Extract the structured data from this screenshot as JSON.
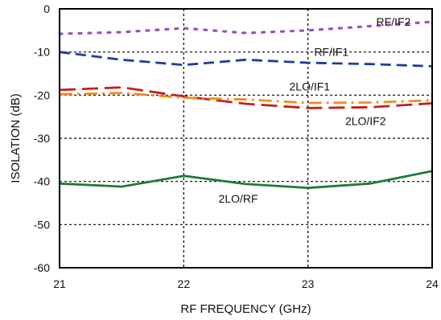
{
  "chart_data": {
    "type": "line",
    "title": "",
    "xlabel": "RF FREQUENCY (GHz)",
    "ylabel": "ISOLATION (dB)",
    "xlim": [
      21,
      24
    ],
    "ylim": [
      -60,
      0
    ],
    "xticks": [
      "21",
      "22",
      "23",
      "24"
    ],
    "yticks": [
      "0",
      "-10",
      "-20",
      "-30",
      "-40",
      "-50",
      "-60"
    ],
    "grid": true,
    "series": [
      {
        "name": "RF/IF2",
        "color": "#9a4fc0",
        "style": "dotted",
        "x": [
          21,
          21.5,
          22,
          22.5,
          23,
          23.5,
          24
        ],
        "y": [
          -5.8,
          -5.4,
          -4.5,
          -5.6,
          -5.0,
          -4.0,
          -3.0
        ]
      },
      {
        "name": "RF/IF1",
        "color": "#1f3c9a",
        "style": "dashed",
        "x": [
          21,
          21.5,
          22,
          22.5,
          23,
          23.5,
          24
        ],
        "y": [
          -10.0,
          -11.8,
          -13.0,
          -11.8,
          -12.5,
          -12.8,
          -13.3
        ]
      },
      {
        "name": "2LO/IF1",
        "color": "#c41f1f",
        "style": "longdash",
        "x": [
          21,
          21.5,
          22,
          22.5,
          23,
          23.5,
          24
        ],
        "y": [
          -18.8,
          -18.2,
          -20.3,
          -22.0,
          -23.0,
          -22.8,
          -21.9
        ]
      },
      {
        "name": "2LO/IF2",
        "color": "#f08c1e",
        "style": "dashdot",
        "x": [
          21,
          21.5,
          22,
          22.5,
          23,
          23.5,
          24
        ],
        "y": [
          -19.8,
          -19.5,
          -20.6,
          -21.0,
          -21.8,
          -21.7,
          -21.2
        ]
      },
      {
        "name": "2LO/RF",
        "color": "#1f7a3a",
        "style": "solid",
        "x": [
          21,
          21.5,
          22,
          22.5,
          23,
          23.5,
          24
        ],
        "y": [
          -40.5,
          -41.2,
          -38.7,
          -40.6,
          -41.5,
          -40.5,
          -37.6
        ]
      }
    ],
    "annotations": [
      {
        "text": "RF/IF2",
        "x": 23.55,
        "y": -3.0
      },
      {
        "text": "RF/IF1",
        "x": 23.05,
        "y": -10.0
      },
      {
        "text": "2LO/IF1",
        "x": 22.85,
        "y": -18.0
      },
      {
        "text": "2LO/IF2",
        "x": 23.3,
        "y": -26.0
      },
      {
        "text": "2LO/RF",
        "x": 22.28,
        "y": -44.0
      }
    ]
  }
}
